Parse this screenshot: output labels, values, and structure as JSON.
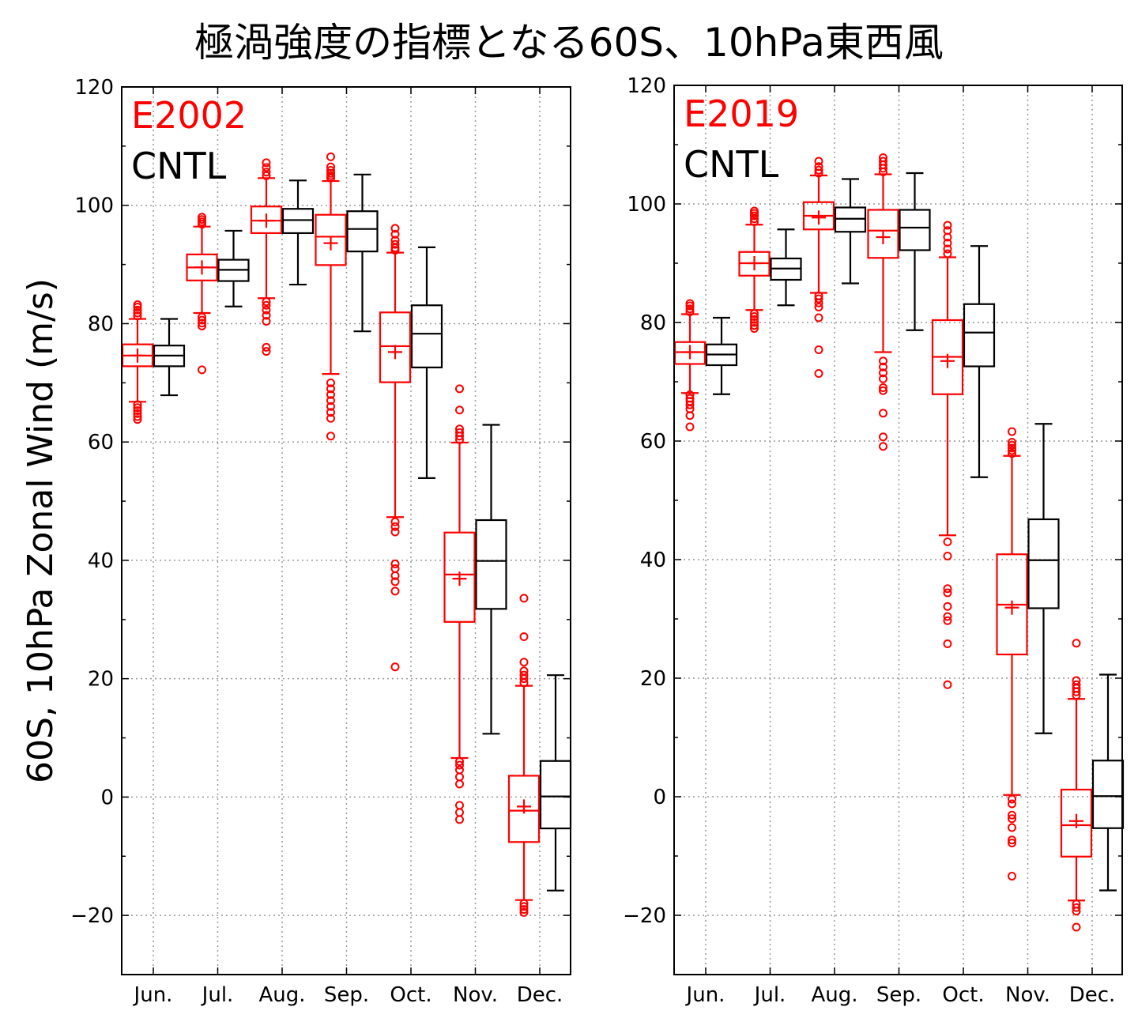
{
  "title": "極渦強度の指標となる60S、10hPa東西風",
  "colors": {
    "experiment": "#ff0000",
    "control": "#000000",
    "grid": "#999999"
  },
  "chart_data": [
    {
      "type": "box",
      "panel": "left",
      "ylabel": "60S, 10hPa Zonal Wind (m/s)",
      "ylim": [
        -30,
        120
      ],
      "yticks": [
        -20,
        0,
        20,
        40,
        60,
        80,
        100,
        120
      ],
      "ytick_labels": [
        "−20",
        "0",
        "20",
        "40",
        "60",
        "80",
        "100",
        "120"
      ],
      "categories": [
        "Jun.",
        "Jul.",
        "Aug.",
        "Sep.",
        "Oct.",
        "Nov.",
        "Dec."
      ],
      "grid": true,
      "legend": {
        "placement": "top-left",
        "entries": [
          {
            "label": "E2002",
            "color": "#ff0000"
          },
          {
            "label": "CNTL",
            "color": "#000000"
          }
        ]
      },
      "series": [
        {
          "name": "E2002",
          "color": "#ff0000",
          "boxes": [
            {
              "whislo": 66.8,
              "q1": 72.8,
              "med": 74.6,
              "q3": 76.5,
              "whishi": 80.8,
              "mean": 74.6,
              "fliers": [
                63.8,
                64.3,
                64.8,
                65.3,
                65.8,
                66.3,
                81.3,
                81.8,
                82.3,
                82.8,
                83.2
              ]
            },
            {
              "whislo": 81.8,
              "q1": 87.3,
              "med": 89.5,
              "q3": 91.7,
              "whishi": 96.4,
              "mean": 89.5,
              "fliers": [
                72.2,
                79.6,
                80.1,
                80.6,
                81.1,
                96.8,
                97.2,
                97.6,
                98.0
              ]
            },
            {
              "whislo": 84.3,
              "q1": 95.3,
              "med": 97.4,
              "q3": 99.8,
              "whishi": 104.6,
              "mean": 97.4,
              "fliers": [
                75.3,
                76.0,
                80.4,
                81.4,
                82.3,
                83.1,
                83.7,
                105.0,
                105.6,
                106.4,
                107.2
              ]
            },
            {
              "whislo": 71.5,
              "q1": 89.9,
              "med": 94.7,
              "q3": 98.4,
              "whishi": 104.1,
              "mean": 93.6,
              "fliers": [
                61.0,
                64.0,
                65.0,
                66.0,
                67.0,
                68.0,
                69.0,
                70.0,
                104.6,
                105.0,
                105.4,
                105.9,
                106.5,
                108.2
              ]
            },
            {
              "whislo": 47.3,
              "q1": 70.1,
              "med": 76.2,
              "q3": 81.9,
              "whishi": 92.0,
              "mean": 75.2,
              "fliers": [
                22.0,
                34.8,
                36.4,
                37.4,
                38.6,
                39.4,
                44.8,
                45.7,
                46.5,
                92.4,
                92.8,
                93.4,
                94.1,
                95.1,
                96.1
              ]
            },
            {
              "whislo": 6.6,
              "q1": 29.6,
              "med": 37.6,
              "q3": 44.7,
              "whishi": 59.9,
              "mean": 36.9,
              "fliers": [
                -3.8,
                -2.6,
                -1.4,
                2.2,
                3.4,
                4.6,
                5.4,
                6.0,
                60.4,
                61.0,
                61.6,
                62.2,
                65.4,
                69.0
              ]
            },
            {
              "whislo": -17.4,
              "q1": -7.6,
              "med": -2.3,
              "q3": 3.6,
              "whishi": 18.8,
              "mean": -1.6,
              "fliers": [
                -19.5,
                -19.0,
                -18.5,
                -18.0,
                19.3,
                20.0,
                20.6,
                21.3,
                22.8,
                27.1,
                33.6
              ]
            }
          ]
        },
        {
          "name": "CNTL",
          "color": "#000000",
          "boxes": [
            {
              "whislo": 67.9,
              "q1": 72.8,
              "med": 74.6,
              "q3": 76.3,
              "whishi": 80.8,
              "mean": null,
              "fliers": []
            },
            {
              "whislo": 82.9,
              "q1": 87.2,
              "med": 89.1,
              "q3": 90.8,
              "whishi": 95.7,
              "mean": null,
              "fliers": []
            },
            {
              "whislo": 86.6,
              "q1": 95.3,
              "med": 97.5,
              "q3": 99.4,
              "whishi": 104.2,
              "mean": null,
              "fliers": []
            },
            {
              "whislo": 78.7,
              "q1": 92.2,
              "med": 96.0,
              "q3": 99.0,
              "whishi": 105.2,
              "mean": null,
              "fliers": []
            },
            {
              "whislo": 53.9,
              "q1": 72.6,
              "med": 78.3,
              "q3": 83.1,
              "whishi": 92.9,
              "mean": null,
              "fliers": []
            },
            {
              "whislo": 10.7,
              "q1": 31.8,
              "med": 39.9,
              "q3": 46.8,
              "whishi": 62.9,
              "mean": null,
              "fliers": []
            },
            {
              "whislo": -15.8,
              "q1": -5.3,
              "med": 0.1,
              "q3": 6.1,
              "whishi": 20.6,
              "mean": null,
              "fliers": []
            }
          ]
        }
      ]
    },
    {
      "type": "box",
      "panel": "right",
      "ylabel": "",
      "ylim": [
        -30,
        120
      ],
      "yticks": [
        -20,
        0,
        20,
        40,
        60,
        80,
        100,
        120
      ],
      "ytick_labels": [
        "−20",
        "0",
        "20",
        "40",
        "60",
        "80",
        "100",
        "120"
      ],
      "categories": [
        "Jun.",
        "Jul.",
        "Aug.",
        "Sep.",
        "Oct.",
        "Nov.",
        "Dec."
      ],
      "grid": true,
      "legend": {
        "placement": "top-left",
        "entries": [
          {
            "label": "E2019",
            "color": "#ff0000"
          },
          {
            "label": "CNTL",
            "color": "#000000"
          }
        ]
      },
      "series": [
        {
          "name": "E2019",
          "color": "#ff0000",
          "boxes": [
            {
              "whislo": 68.1,
              "q1": 73.0,
              "med": 75.0,
              "q3": 76.7,
              "whishi": 81.4,
              "mean": 75.0,
              "fliers": [
                62.4,
                64.3,
                65.4,
                66.1,
                66.7,
                67.2,
                67.8,
                81.8,
                82.3,
                82.8,
                83.2
              ]
            },
            {
              "whislo": 82.1,
              "q1": 87.9,
              "med": 90.0,
              "q3": 91.9,
              "whishi": 96.5,
              "mean": 90.0,
              "fliers": [
                79.0,
                79.5,
                80.0,
                80.5,
                81.0,
                81.5,
                97.0,
                97.5,
                98.0,
                98.4,
                98.8
              ]
            },
            {
              "whislo": 85.0,
              "q1": 95.7,
              "med": 98.0,
              "q3": 100.3,
              "whishi": 104.8,
              "mean": 97.7,
              "fliers": [
                71.4,
                75.4,
                80.8,
                82.6,
                83.3,
                84.0,
                84.5,
                105.2,
                105.7,
                106.3,
                107.2
              ]
            },
            {
              "whislo": 75.0,
              "q1": 90.9,
              "med": 95.5,
              "q3": 99.0,
              "whishi": 105.0,
              "mean": 94.4,
              "fliers": [
                59.1,
                60.7,
                64.7,
                68.5,
                69.0,
                70.5,
                71.5,
                72.5,
                73.5,
                105.4,
                106.0,
                106.6,
                107.2,
                107.8
              ]
            },
            {
              "whislo": 44.1,
              "q1": 67.9,
              "med": 74.2,
              "q3": 80.4,
              "whishi": 91.0,
              "mean": 73.5,
              "fliers": [
                18.9,
                25.8,
                29.7,
                30.4,
                32.1,
                34.4,
                35.1,
                40.6,
                43.0,
                91.6,
                92.4,
                93.4,
                94.4,
                95.5,
                96.4
              ]
            },
            {
              "whislo": 0.3,
              "q1": 24.0,
              "med": 32.4,
              "q3": 40.9,
              "whishi": 57.5,
              "mean": 31.9,
              "fliers": [
                -13.4,
                -7.8,
                -7.3,
                -5.2,
                -3.7,
                -3.1,
                -1.2,
                -0.4,
                57.9,
                58.4,
                58.8,
                59.3,
                59.8,
                61.6
              ]
            },
            {
              "whislo": -17.5,
              "q1": -10.1,
              "med": -4.8,
              "q3": 1.2,
              "whishi": 16.5,
              "mean": -4.1,
              "fliers": [
                -22.0,
                -19.3,
                -18.7,
                -18.1,
                17.1,
                17.7,
                18.3,
                18.9,
                19.6,
                25.9
              ]
            }
          ]
        },
        {
          "name": "CNTL",
          "color": "#000000",
          "boxes": [
            {
              "whislo": 67.9,
              "q1": 72.8,
              "med": 74.6,
              "q3": 76.3,
              "whishi": 80.8,
              "mean": null,
              "fliers": []
            },
            {
              "whislo": 82.9,
              "q1": 87.2,
              "med": 89.1,
              "q3": 90.8,
              "whishi": 95.7,
              "mean": null,
              "fliers": []
            },
            {
              "whislo": 86.6,
              "q1": 95.3,
              "med": 97.5,
              "q3": 99.4,
              "whishi": 104.2,
              "mean": null,
              "fliers": []
            },
            {
              "whislo": 78.7,
              "q1": 92.2,
              "med": 96.0,
              "q3": 99.0,
              "whishi": 105.2,
              "mean": null,
              "fliers": []
            },
            {
              "whislo": 53.9,
              "q1": 72.6,
              "med": 78.3,
              "q3": 83.1,
              "whishi": 92.9,
              "mean": null,
              "fliers": []
            },
            {
              "whislo": 10.7,
              "q1": 31.8,
              "med": 39.9,
              "q3": 46.8,
              "whishi": 62.9,
              "mean": null,
              "fliers": []
            },
            {
              "whislo": -15.8,
              "q1": -5.3,
              "med": 0.1,
              "q3": 6.1,
              "whishi": 20.6,
              "mean": null,
              "fliers": []
            }
          ]
        }
      ]
    }
  ]
}
